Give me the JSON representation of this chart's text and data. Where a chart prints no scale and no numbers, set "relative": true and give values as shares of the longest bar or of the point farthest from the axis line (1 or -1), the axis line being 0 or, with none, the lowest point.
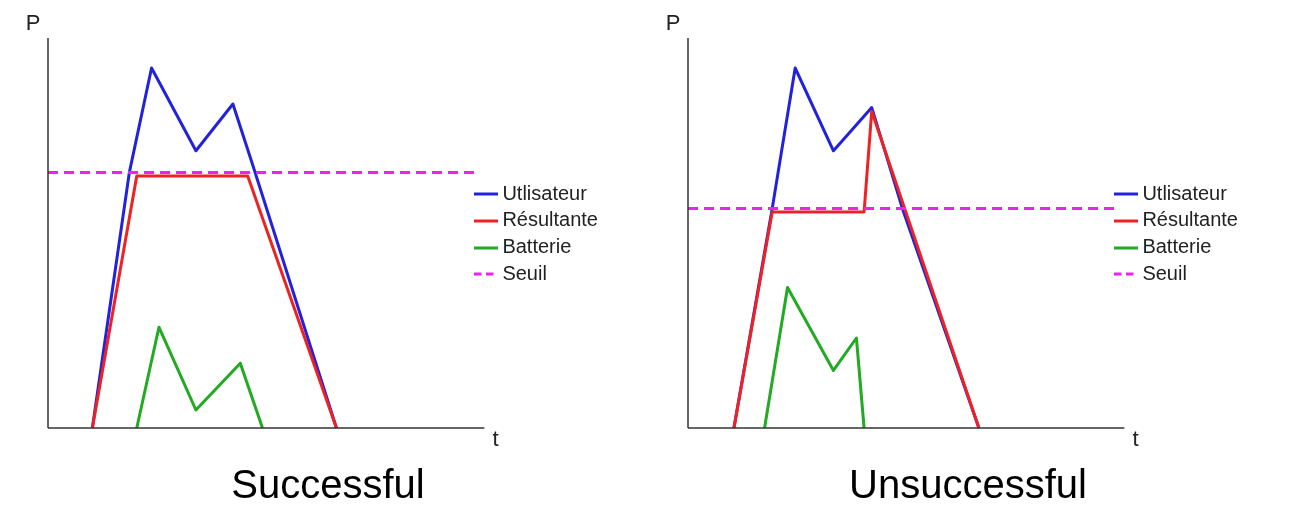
{
  "chart_data": [
    {
      "type": "line",
      "title": "Successful",
      "xlabel": "t",
      "ylabel": "P",
      "relative": true,
      "marker": "none",
      "legend": "right",
      "grid": false,
      "categories": [
        null,
        null,
        null,
        null,
        null,
        null,
        null,
        null,
        null,
        null,
        null,
        null,
        null,
        null,
        null,
        null,
        null,
        null,
        null,
        null,
        null,
        null,
        null,
        null,
        null,
        null,
        null,
        null,
        null,
        null,
        null,
        null,
        null,
        null,
        null,
        null,
        null,
        null,
        null,
        null,
        null,
        null,
        null,
        null,
        null,
        null,
        null,
        null,
        null,
        null,
        null,
        null,
        null,
        null,
        null,
        null,
        null,
        null,
        null,
        null
      ],
      "series": [
        {
          "name": "Utlisateur",
          "color": "#2222dd",
          "values": [
            null,
            null,
            null,
            null,
            null,
            null,
            0,
            null,
            null,
            null,
            null,
            0.71,
            null,
            null,
            1,
            null,
            null,
            null,
            null,
            null,
            0.77,
            null,
            null,
            null,
            null,
            0.9,
            null,
            null,
            0.71,
            null,
            null,
            null,
            null,
            null,
            null,
            null,
            null,
            null,
            null,
            0,
            null,
            null,
            null,
            null,
            null,
            null,
            null,
            null,
            null,
            null,
            null,
            null,
            null,
            null,
            null,
            null,
            null,
            null,
            null,
            null
          ]
        },
        {
          "name": "Résultante",
          "color": "#ee2222",
          "values": [
            null,
            null,
            null,
            null,
            null,
            null,
            0,
            null,
            null,
            null,
            null,
            null,
            0.7,
            null,
            null,
            null,
            null,
            null,
            null,
            null,
            null,
            null,
            null,
            null,
            null,
            null,
            null,
            0.7,
            null,
            null,
            null,
            null,
            null,
            null,
            null,
            null,
            null,
            null,
            null,
            0,
            null,
            null,
            null,
            null,
            null,
            null,
            null,
            null,
            null,
            null,
            null,
            null,
            null,
            null,
            null,
            null,
            null,
            null,
            null,
            null
          ]
        },
        {
          "name": "Batterie",
          "color": "#22aa22",
          "values": [
            null,
            null,
            null,
            null,
            null,
            null,
            null,
            null,
            null,
            null,
            null,
            null,
            0,
            null,
            null,
            0.28,
            null,
            null,
            null,
            null,
            0.05,
            null,
            null,
            null,
            null,
            null,
            0.18,
            null,
            null,
            0,
            null,
            null,
            null,
            null,
            null,
            null,
            null,
            null,
            null,
            null,
            null,
            null,
            null,
            null,
            null,
            null,
            null,
            null,
            null,
            null,
            null,
            null,
            null,
            null,
            null,
            null,
            null,
            null,
            null,
            null
          ]
        },
        {
          "name": "Seuil",
          "color": "#ee22ee",
          "line_style": "dashed",
          "values": [
            0.71,
            null,
            null,
            null,
            null,
            null,
            null,
            null,
            null,
            null,
            null,
            null,
            null,
            null,
            null,
            null,
            null,
            null,
            null,
            null,
            null,
            null,
            null,
            null,
            null,
            null,
            null,
            null,
            null,
            null,
            null,
            null,
            null,
            null,
            null,
            null,
            null,
            null,
            null,
            null,
            null,
            null,
            null,
            null,
            null,
            null,
            null,
            null,
            null,
            null,
            null,
            null,
            null,
            null,
            null,
            null,
            null,
            null,
            0.71,
            null
          ]
        }
      ]
    },
    {
      "type": "line",
      "title": "Unsuccessful",
      "xlabel": "t",
      "ylabel": "P",
      "relative": true,
      "marker": "none",
      "legend": "right",
      "grid": false,
      "categories": [
        null,
        null,
        null,
        null,
        null,
        null,
        null,
        null,
        null,
        null,
        null,
        null,
        null,
        null,
        null,
        null,
        null,
        null,
        null,
        null,
        null,
        null,
        null,
        null,
        null,
        null,
        null,
        null,
        null,
        null,
        null,
        null,
        null,
        null,
        null,
        null,
        null,
        null,
        null,
        null,
        null,
        null,
        null,
        null,
        null,
        null,
        null,
        null,
        null,
        null,
        null,
        null,
        null,
        null,
        null,
        null,
        null,
        null
      ],
      "series": [
        {
          "name": "Utlisateur",
          "color": "#2222dd",
          "values": [
            null,
            null,
            null,
            null,
            null,
            null,
            0,
            null,
            null,
            null,
            null,
            0.61,
            null,
            null,
            1,
            null,
            null,
            null,
            null,
            0.77,
            null,
            null,
            null,
            null,
            0.89,
            null,
            null,
            null,
            0.61,
            null,
            null,
            null,
            null,
            null,
            null,
            null,
            null,
            null,
            0,
            null,
            null,
            null,
            null,
            null,
            null,
            null,
            null,
            null,
            null,
            null,
            null,
            null,
            null,
            null,
            null,
            null,
            null,
            null
          ]
        },
        {
          "name": "Résultante",
          "color": "#ee2222",
          "values": [
            null,
            null,
            null,
            null,
            null,
            null,
            0,
            null,
            null,
            null,
            null,
            0.6,
            null,
            null,
            null,
            null,
            null,
            null,
            null,
            null,
            null,
            null,
            null,
            0.6,
            0.88,
            null,
            null,
            null,
            null,
            null,
            null,
            null,
            null,
            null,
            null,
            null,
            null,
            null,
            0,
            null,
            null,
            null,
            null,
            null,
            null,
            null,
            null,
            null,
            null,
            null,
            null,
            null,
            null,
            null,
            null,
            null,
            null,
            null
          ]
        },
        {
          "name": "Batterie",
          "color": "#22aa22",
          "values": [
            null,
            null,
            null,
            null,
            null,
            null,
            null,
            null,
            null,
            null,
            0,
            null,
            null,
            0.39,
            null,
            null,
            null,
            null,
            null,
            0.16,
            null,
            null,
            0.25,
            0,
            null,
            null,
            null,
            null,
            null,
            null,
            null,
            null,
            null,
            null,
            null,
            null,
            null,
            null,
            null,
            null,
            null,
            null,
            null,
            null,
            null,
            null,
            null,
            null,
            null,
            null,
            null,
            null,
            null,
            null,
            null,
            null,
            null,
            null
          ]
        },
        {
          "name": "Seuil",
          "color": "#ee22ee",
          "line_style": "dashed",
          "values": [
            0.61,
            null,
            null,
            null,
            null,
            null,
            null,
            null,
            null,
            null,
            null,
            null,
            null,
            null,
            null,
            null,
            null,
            null,
            null,
            null,
            null,
            null,
            null,
            null,
            null,
            null,
            null,
            null,
            null,
            null,
            null,
            null,
            null,
            null,
            null,
            null,
            null,
            null,
            null,
            null,
            null,
            null,
            null,
            null,
            null,
            null,
            null,
            null,
            null,
            null,
            null,
            null,
            null,
            null,
            null,
            null,
            0.61,
            null
          ]
        }
      ]
    }
  ]
}
